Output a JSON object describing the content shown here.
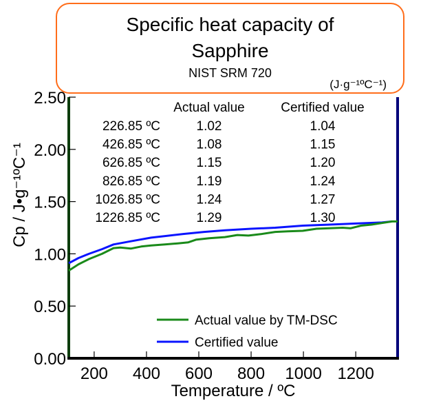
{
  "chart_data": {
    "type": "line",
    "title": "Specific heat capacity of",
    "title_line2": "Sapphire",
    "subtitle": "NIST SRM 720",
    "table_unit": "(J·g⁻¹ºC⁻¹)",
    "xlabel": "Temperature / ºC",
    "ylabel": "Cp / J•g⁻¹ºC⁻¹",
    "xlim": [
      103,
      1360
    ],
    "ylim": [
      0,
      2.5
    ],
    "x_ticks": [
      200,
      400,
      600,
      800,
      1000,
      1200
    ],
    "x_tick_labels": [
      "200",
      "400",
      "600",
      "800",
      "1000",
      "1200"
    ],
    "y_ticks": [
      0,
      0.5,
      1.0,
      1.5,
      2.0,
      2.5
    ],
    "y_tick_labels": [
      "0.00",
      "0.50",
      "1.00",
      "1.50",
      "2.00",
      "2.50"
    ],
    "grid": false,
    "legend_position": "bottom-center",
    "series": [
      {
        "name": "Actual value by TM-DSC",
        "color": "#1a8a1a",
        "x": [
          103,
          140,
          180,
          230,
          274,
          300,
          340,
          380,
          418,
          471,
          520,
          560,
          589,
          640,
          700,
          747,
          790,
          840,
          892,
          940,
          997,
          1050,
          1100,
          1150,
          1180,
          1220,
          1260,
          1300,
          1339,
          1360
        ],
        "y": [
          0.84,
          0.9,
          0.95,
          1.0,
          1.055,
          1.06,
          1.05,
          1.07,
          1.08,
          1.09,
          1.1,
          1.11,
          1.135,
          1.15,
          1.16,
          1.18,
          1.175,
          1.19,
          1.21,
          1.215,
          1.22,
          1.24,
          1.245,
          1.25,
          1.245,
          1.27,
          1.28,
          1.295,
          1.31,
          1.31
        ]
      },
      {
        "name": "Certified value",
        "color": "#0a14ff",
        "x": [
          103,
          140,
          180,
          230,
          274,
          340,
          418,
          471,
          540,
          620,
          700,
          800,
          892,
          997,
          1100,
          1200,
          1300,
          1339
        ],
        "y": [
          0.91,
          0.96,
          1.0,
          1.045,
          1.09,
          1.12,
          1.155,
          1.17,
          1.19,
          1.21,
          1.225,
          1.24,
          1.25,
          1.27,
          1.28,
          1.29,
          1.3,
          1.31
        ]
      }
    ],
    "table": {
      "headers": [
        "",
        "Actual value",
        "Certified value"
      ],
      "rows": [
        [
          "226.85 ºC",
          "1.02",
          "1.04"
        ],
        [
          "426.85 ºC",
          "1.08",
          "1.15"
        ],
        [
          "626.85 ºC",
          "1.15",
          "1.20"
        ],
        [
          "826.85 ºC",
          "1.19",
          "1.24"
        ],
        [
          "1026.85 ºC",
          "1.24",
          "1.27"
        ],
        [
          "1226.85 ºC",
          "1.29",
          "1.30"
        ]
      ]
    },
    "colors": {
      "box_border": "#ff6d1a",
      "left_axis": "#0d3d0d",
      "right_axis": "#00007a",
      "frame": "#000000"
    }
  }
}
